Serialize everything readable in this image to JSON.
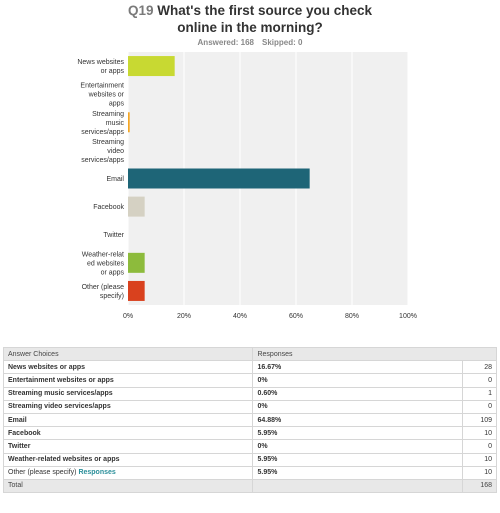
{
  "header": {
    "question_number": "Q19",
    "title_line1": "What's the first source you check",
    "title_line2": "online in the morning?",
    "answered": "Answered: 168",
    "skipped": "Skipped: 0"
  },
  "chart_data": {
    "type": "bar",
    "orientation": "horizontal",
    "categories": [
      [
        "News websites",
        "or apps"
      ],
      [
        "Entertainment",
        "websites or",
        "apps"
      ],
      [
        "Streaming",
        "music",
        "services/apps"
      ],
      [
        "Streaming",
        "video",
        "services/apps"
      ],
      [
        "Email"
      ],
      [
        "Facebook"
      ],
      [
        "Twitter"
      ],
      [
        "Weather-relat",
        "ed websites",
        "or apps"
      ],
      [
        "Other (please",
        "specify)"
      ]
    ],
    "values": [
      16.67,
      0,
      0.6,
      0,
      64.88,
      5.95,
      0,
      5.95,
      5.95
    ],
    "colors": [
      "#c8d932",
      "#8dbb3c",
      "#f5a623",
      "#6ea8d8",
      "#1e6577",
      "#d5d1c3",
      "#5aa0b0",
      "#8dbb3c",
      "#d9411e"
    ],
    "xlim": [
      0,
      100
    ],
    "xticks": [
      "0%",
      "20%",
      "40%",
      "60%",
      "80%",
      "100%"
    ],
    "xtick_values": [
      0,
      20,
      40,
      60,
      80,
      100
    ],
    "grid": true,
    "title": "",
    "xlabel": "",
    "ylabel": ""
  },
  "table": {
    "headers": [
      "Answer Choices",
      "Responses"
    ],
    "rows": [
      {
        "choice": "News websites or apps",
        "pct": "16.67%",
        "count": "28"
      },
      {
        "choice": "Entertainment websites or apps",
        "pct": "0%",
        "count": "0"
      },
      {
        "choice": "Streaming music services/apps",
        "pct": "0.60%",
        "count": "1"
      },
      {
        "choice": "Streaming video services/apps",
        "pct": "0%",
        "count": "0"
      },
      {
        "choice": "Email",
        "pct": "64.88%",
        "count": "109"
      },
      {
        "choice": "Facebook",
        "pct": "5.95%",
        "count": "10"
      },
      {
        "choice": "Twitter",
        "pct": "0%",
        "count": "0"
      },
      {
        "choice": "Weather-related websites or apps",
        "pct": "5.95%",
        "count": "10"
      }
    ],
    "other": {
      "choice": "Other (please specify)",
      "link": "Responses",
      "pct": "5.95%",
      "count": "10"
    },
    "total": {
      "label": "Total",
      "count": "168"
    }
  }
}
